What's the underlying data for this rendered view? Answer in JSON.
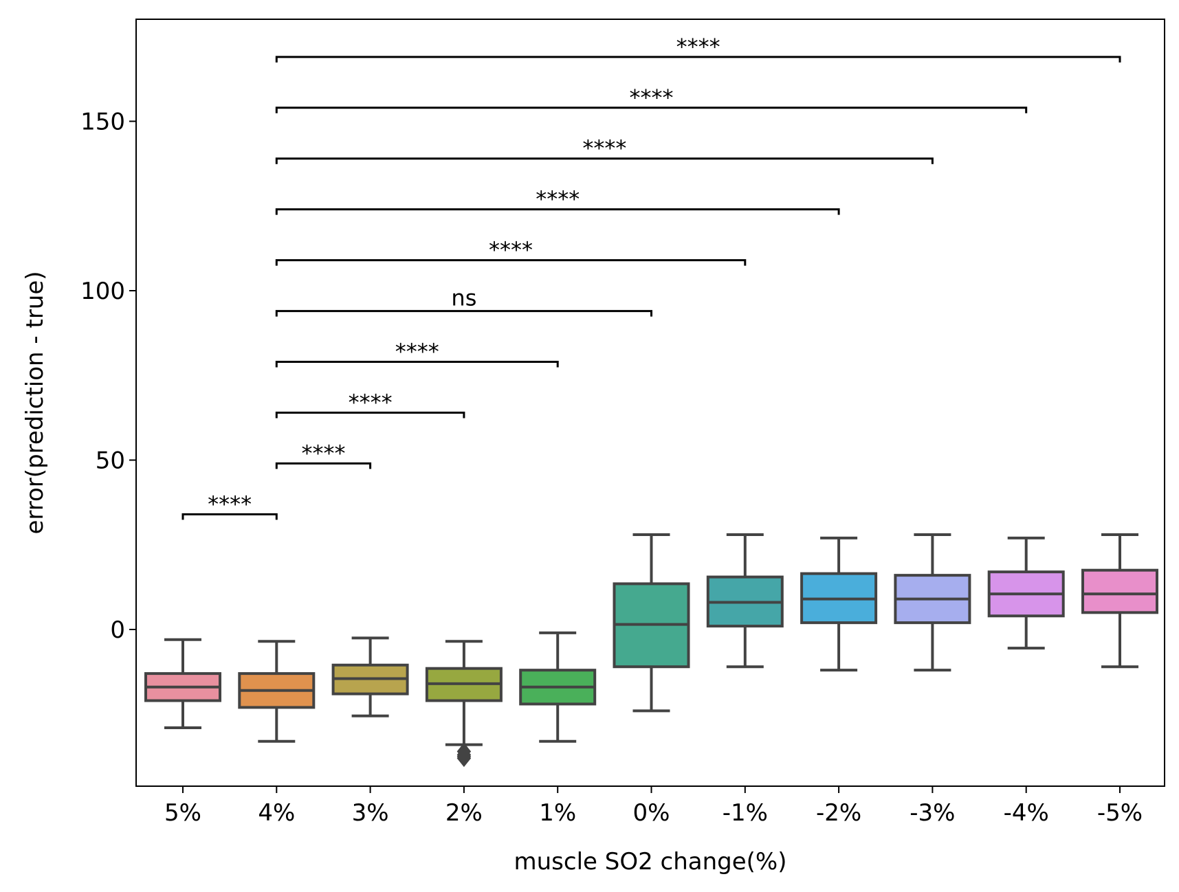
{
  "chart_data": {
    "type": "box",
    "xlabel": "muscle SO2 change(%)",
    "ylabel": "error(prediction - true)",
    "categories": [
      "5%",
      "4%",
      "3%",
      "2%",
      "1%",
      "0%",
      "-1%",
      "-2%",
      "-3%",
      "-4%",
      "-5%"
    ],
    "ylim": [
      -46.5,
      180
    ],
    "yticks": [
      0,
      50,
      100,
      150
    ],
    "ytick_labels": [
      "0",
      "50",
      "100",
      "150"
    ],
    "grid": false,
    "boxes": [
      {
        "category": "5%",
        "whisker_low": -29,
        "q1": -21,
        "median": -17,
        "q3": -13,
        "whisker_high": -3,
        "color": "#e8909f",
        "outliers": []
      },
      {
        "category": "4%",
        "whisker_low": -33,
        "q1": -23,
        "median": -18,
        "q3": -13,
        "whisker_high": -3.5,
        "color": "#e0924e",
        "outliers": []
      },
      {
        "category": "3%",
        "whisker_low": -25.5,
        "q1": -19,
        "median": -14.5,
        "q3": -10.5,
        "whisker_high": -2.5,
        "color": "#b8a44e",
        "outliers": []
      },
      {
        "category": "2%",
        "whisker_low": -34,
        "q1": -21,
        "median": -16,
        "q3": -11.5,
        "whisker_high": -3.5,
        "color": "#97a840",
        "outliers": [
          -36,
          -37,
          -37.5,
          -38
        ]
      },
      {
        "category": "1%",
        "whisker_low": -33,
        "q1": -22,
        "median": -17,
        "q3": -12,
        "whisker_high": -1,
        "color": "#4ab05a",
        "outliers": []
      },
      {
        "category": "0%",
        "whisker_low": -24,
        "q1": -11,
        "median": 1.5,
        "q3": 13.5,
        "whisker_high": 28,
        "color": "#45a98f",
        "outliers": []
      },
      {
        "category": "-1%",
        "whisker_low": -11,
        "q1": 1,
        "median": 8,
        "q3": 15.5,
        "whisker_high": 28,
        "color": "#45a6a8",
        "outliers": []
      },
      {
        "category": "-2%",
        "whisker_low": -12,
        "q1": 2,
        "median": 9,
        "q3": 16.5,
        "whisker_high": 27,
        "color": "#4aaedb",
        "outliers": []
      },
      {
        "category": "-3%",
        "whisker_low": -12,
        "q1": 2,
        "median": 9,
        "q3": 16,
        "whisker_high": 28,
        "color": "#a6aeee",
        "outliers": []
      },
      {
        "category": "-4%",
        "whisker_low": -5.5,
        "q1": 4,
        "median": 10.5,
        "q3": 17,
        "whisker_high": 27,
        "color": "#d794ea",
        "outliers": []
      },
      {
        "category": "-5%",
        "whisker_low": -11,
        "q1": 5,
        "median": 10.5,
        "q3": 17.5,
        "whisker_high": 28,
        "color": "#e88fca",
        "outliers": []
      }
    ],
    "annotations": [
      {
        "from": "5%",
        "to": "4%",
        "y": 34,
        "label": "****"
      },
      {
        "from": "4%",
        "to": "3%",
        "y": 49,
        "label": "****"
      },
      {
        "from": "4%",
        "to": "2%",
        "y": 64,
        "label": "****"
      },
      {
        "from": "4%",
        "to": "1%",
        "y": 79,
        "label": "****"
      },
      {
        "from": "4%",
        "to": "0%",
        "y": 94,
        "label": "ns"
      },
      {
        "from": "4%",
        "to": "-1%",
        "y": 109,
        "label": "****"
      },
      {
        "from": "4%",
        "to": "-2%",
        "y": 124,
        "label": "****"
      },
      {
        "from": "4%",
        "to": "-3%",
        "y": 139,
        "label": "****"
      },
      {
        "from": "4%",
        "to": "-4%",
        "y": 154,
        "label": "****"
      },
      {
        "from": "4%",
        "to": "-5%",
        "y": 169,
        "label": "****"
      }
    ],
    "colors": {
      "box_edge": "#434343",
      "axis": "#000000"
    }
  }
}
